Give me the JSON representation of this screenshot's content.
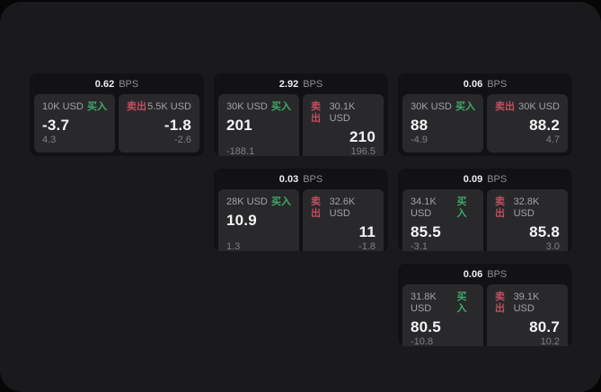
{
  "labels": {
    "bps": "BPS",
    "buy": "买入",
    "sell": "卖出"
  },
  "colors": {
    "buy_green": "#3ea968",
    "sell_red": "#c04f5f"
  },
  "cards": [
    {
      "bps": "0.62",
      "grid": {
        "row": 1,
        "col": 1
      },
      "buy": {
        "amount": "10K USD",
        "value": "-3.7",
        "delta": "4.3"
      },
      "sell": {
        "amount": "5.5K USD",
        "value": "-1.8",
        "delta": "-2.6"
      }
    },
    {
      "bps": "2.92",
      "grid": {
        "row": 1,
        "col": 2
      },
      "buy": {
        "amount": "30K USD",
        "value": "201",
        "delta": "-188.1"
      },
      "sell": {
        "amount": "30.1K USD",
        "value": "210",
        "delta": "196.5"
      }
    },
    {
      "bps": "0.06",
      "grid": {
        "row": 1,
        "col": 3
      },
      "buy": {
        "amount": "30K USD",
        "value": "88",
        "delta": "-4.9"
      },
      "sell": {
        "amount": "30K USD",
        "value": "88.2",
        "delta": "4.7"
      }
    },
    {
      "bps": "0.03",
      "grid": {
        "row": 2,
        "col": 2
      },
      "buy": {
        "amount": "28K USD",
        "value": "10.9",
        "delta": "1.3"
      },
      "sell": {
        "amount": "32.6K USD",
        "value": "11",
        "delta": "-1.8"
      }
    },
    {
      "bps": "0.09",
      "grid": {
        "row": 2,
        "col": 3
      },
      "buy": {
        "amount": "34.1K USD",
        "value": "85.5",
        "delta": "-3.1"
      },
      "sell": {
        "amount": "32.8K USD",
        "value": "85.8",
        "delta": "3.0"
      }
    },
    {
      "bps": "0.06",
      "grid": {
        "row": 3,
        "col": 3
      },
      "buy": {
        "amount": "31.8K USD",
        "value": "80.5",
        "delta": "-10.8"
      },
      "sell": {
        "amount": "39.1K USD",
        "value": "80.7",
        "delta": "10.2"
      }
    }
  ]
}
